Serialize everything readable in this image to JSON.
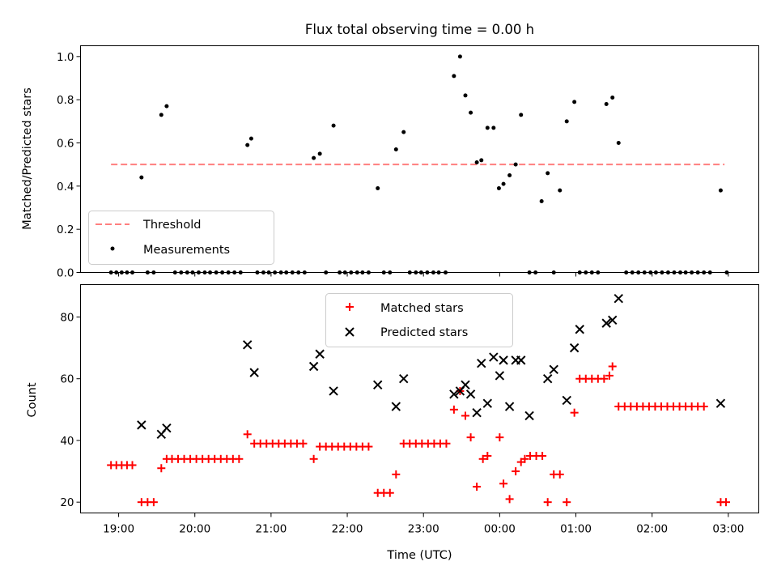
{
  "chart_data": [
    {
      "type": "scatter",
      "title": "Flux total observing time = 0.00 h",
      "xlabel": "",
      "ylabel": "Matched/Predicted stars",
      "xlim": [
        18.5,
        27.4
      ],
      "ylim": [
        0,
        1.05
      ],
      "yticks": [
        0.0,
        0.2,
        0.4,
        0.6,
        0.8,
        1.0
      ],
      "ytick_labels": [
        "0.0",
        "0.2",
        "0.4",
        "0.6",
        "0.8",
        "1.0"
      ],
      "xticks": [
        19,
        20,
        21,
        22,
        23,
        24,
        25,
        26,
        27
      ],
      "legend_location": "lower-left",
      "grid": false,
      "threshold": {
        "name": "Threshold",
        "value": 0.5,
        "x_range": [
          18.9,
          26.95
        ],
        "color": "#ff7f7f",
        "style": "dashed"
      },
      "series": [
        {
          "name": "Measurements",
          "color": "#000000",
          "marker": "dot",
          "x": [
            18.9,
            18.97,
            19.04,
            19.11,
            19.18,
            19.3,
            19.38,
            19.46,
            19.56,
            19.63,
            19.74,
            19.82,
            19.9,
            19.97,
            20.05,
            20.13,
            20.2,
            20.28,
            20.36,
            20.44,
            20.52,
            20.6,
            20.69,
            20.74,
            20.82,
            20.9,
            20.97,
            21.05,
            21.13,
            21.2,
            21.28,
            21.36,
            21.44,
            21.56,
            21.64,
            21.72,
            21.82,
            21.9,
            21.97,
            22.05,
            22.13,
            22.2,
            22.28,
            22.4,
            22.48,
            22.56,
            22.64,
            22.74,
            22.82,
            22.9,
            22.97,
            23.05,
            23.13,
            23.2,
            23.29,
            23.4,
            23.48,
            23.55,
            23.62,
            23.7,
            23.76,
            23.84,
            23.92,
            23.99,
            24.05,
            24.13,
            24.21,
            24.28,
            24.39,
            24.47,
            24.55,
            24.63,
            24.71,
            24.79,
            24.88,
            24.98,
            25.05,
            25.13,
            25.21,
            25.29,
            25.4,
            25.48,
            25.56,
            25.66,
            25.74,
            25.82,
            25.9,
            25.98,
            26.05,
            26.13,
            26.21,
            26.29,
            26.37,
            26.44,
            26.52,
            26.6,
            26.68,
            26.76,
            26.9,
            26.98
          ],
          "y": [
            0,
            0,
            0,
            0,
            0,
            0.44,
            0,
            0,
            0.73,
            0.77,
            0,
            0,
            0,
            0,
            0,
            0,
            0,
            0,
            0,
            0,
            0,
            0,
            0.59,
            0.62,
            0,
            0,
            0,
            0,
            0,
            0,
            0,
            0,
            0,
            0.53,
            0.55,
            0,
            0.68,
            0,
            0,
            0,
            0,
            0,
            0,
            0.39,
            0,
            0,
            0.57,
            0.65,
            0,
            0,
            0,
            0,
            0,
            0,
            0,
            0.91,
            1.0,
            0.82,
            0.74,
            0.51,
            0.52,
            0.67,
            0.67,
            0.39,
            0.41,
            0.45,
            0.5,
            0.73,
            0,
            0,
            0.33,
            0.46,
            0,
            0.38,
            0.7,
            0.79,
            0,
            0,
            0,
            0,
            0.78,
            0.81,
            0.6,
            0,
            0,
            0,
            0,
            0,
            0,
            0,
            0,
            0,
            0,
            0,
            0,
            0,
            0,
            0,
            0.38,
            0
          ]
        }
      ]
    },
    {
      "type": "scatter",
      "title": "",
      "xlabel": "Time (UTC)",
      "ylabel": "Count",
      "xlim": [
        18.5,
        27.4
      ],
      "ylim": [
        16.5,
        90.5
      ],
      "yticks": [
        20,
        40,
        60,
        80
      ],
      "ytick_labels": [
        "20",
        "40",
        "60",
        "80"
      ],
      "xticks": [
        19,
        20,
        21,
        22,
        23,
        24,
        25,
        26,
        27
      ],
      "xtick_labels": [
        "19:00",
        "20:00",
        "21:00",
        "22:00",
        "23:00",
        "00:00",
        "01:00",
        "02:00",
        "03:00"
      ],
      "legend_location": "upper-center",
      "grid": false,
      "series": [
        {
          "name": "Matched stars",
          "color": "#ff0000",
          "marker": "plus",
          "x": [
            18.9,
            18.97,
            19.04,
            19.11,
            19.18,
            19.3,
            19.38,
            19.46,
            19.56,
            19.63,
            19.7,
            19.78,
            19.86,
            19.94,
            20.02,
            20.1,
            20.18,
            20.26,
            20.34,
            20.42,
            20.5,
            20.58,
            20.69,
            20.78,
            20.86,
            20.94,
            21.02,
            21.1,
            21.18,
            21.26,
            21.34,
            21.42,
            21.56,
            21.64,
            21.72,
            21.8,
            21.88,
            21.96,
            22.04,
            22.12,
            22.2,
            22.28,
            22.4,
            22.48,
            22.56,
            22.64,
            22.74,
            22.82,
            22.9,
            22.98,
            23.06,
            23.14,
            23.22,
            23.3,
            23.4,
            23.48,
            23.55,
            23.62,
            23.7,
            23.78,
            23.84,
            24.0,
            24.05,
            24.13,
            24.21,
            24.28,
            24.33,
            24.4,
            24.48,
            24.56,
            24.63,
            24.71,
            24.79,
            24.88,
            24.98,
            25.05,
            25.13,
            25.21,
            25.29,
            25.37,
            25.44,
            25.48,
            25.56,
            25.64,
            25.72,
            25.8,
            25.88,
            25.96,
            26.04,
            26.12,
            26.2,
            26.28,
            26.36,
            26.44,
            26.52,
            26.6,
            26.68,
            26.9,
            26.97
          ],
          "y": [
            32,
            32,
            32,
            32,
            32,
            20,
            20,
            20,
            31,
            34,
            34,
            34,
            34,
            34,
            34,
            34,
            34,
            34,
            34,
            34,
            34,
            34,
            42,
            39,
            39,
            39,
            39,
            39,
            39,
            39,
            39,
            39,
            34,
            38,
            38,
            38,
            38,
            38,
            38,
            38,
            38,
            38,
            23,
            23,
            23,
            29,
            39,
            39,
            39,
            39,
            39,
            39,
            39,
            39,
            50,
            56,
            48,
            41,
            25,
            34,
            35,
            41,
            26,
            21,
            30,
            33,
            34,
            35,
            35,
            35,
            20,
            29,
            29,
            20,
            49,
            60,
            60,
            60,
            60,
            60,
            61,
            64,
            51,
            51,
            51,
            51,
            51,
            51,
            51,
            51,
            51,
            51,
            51,
            51,
            51,
            51,
            51,
            20,
            20
          ]
        },
        {
          "name": "Predicted stars",
          "color": "#000000",
          "marker": "x",
          "x": [
            19.3,
            19.56,
            19.63,
            20.69,
            20.78,
            21.56,
            21.64,
            21.82,
            22.4,
            22.64,
            22.74,
            23.4,
            23.48,
            23.55,
            23.62,
            23.7,
            23.76,
            23.84,
            23.92,
            24.0,
            24.05,
            24.13,
            24.21,
            24.28,
            24.39,
            24.63,
            24.71,
            24.88,
            24.98,
            25.05,
            25.4,
            25.48,
            25.56,
            26.9
          ],
          "y": [
            45,
            42,
            44,
            71,
            62,
            64,
            68,
            56,
            58,
            51,
            60,
            55,
            56,
            58,
            55,
            49,
            65,
            52,
            67,
            61,
            66,
            51,
            66,
            66,
            48,
            60,
            63,
            53,
            70,
            76,
            78,
            79,
            86,
            52
          ]
        }
      ]
    }
  ]
}
